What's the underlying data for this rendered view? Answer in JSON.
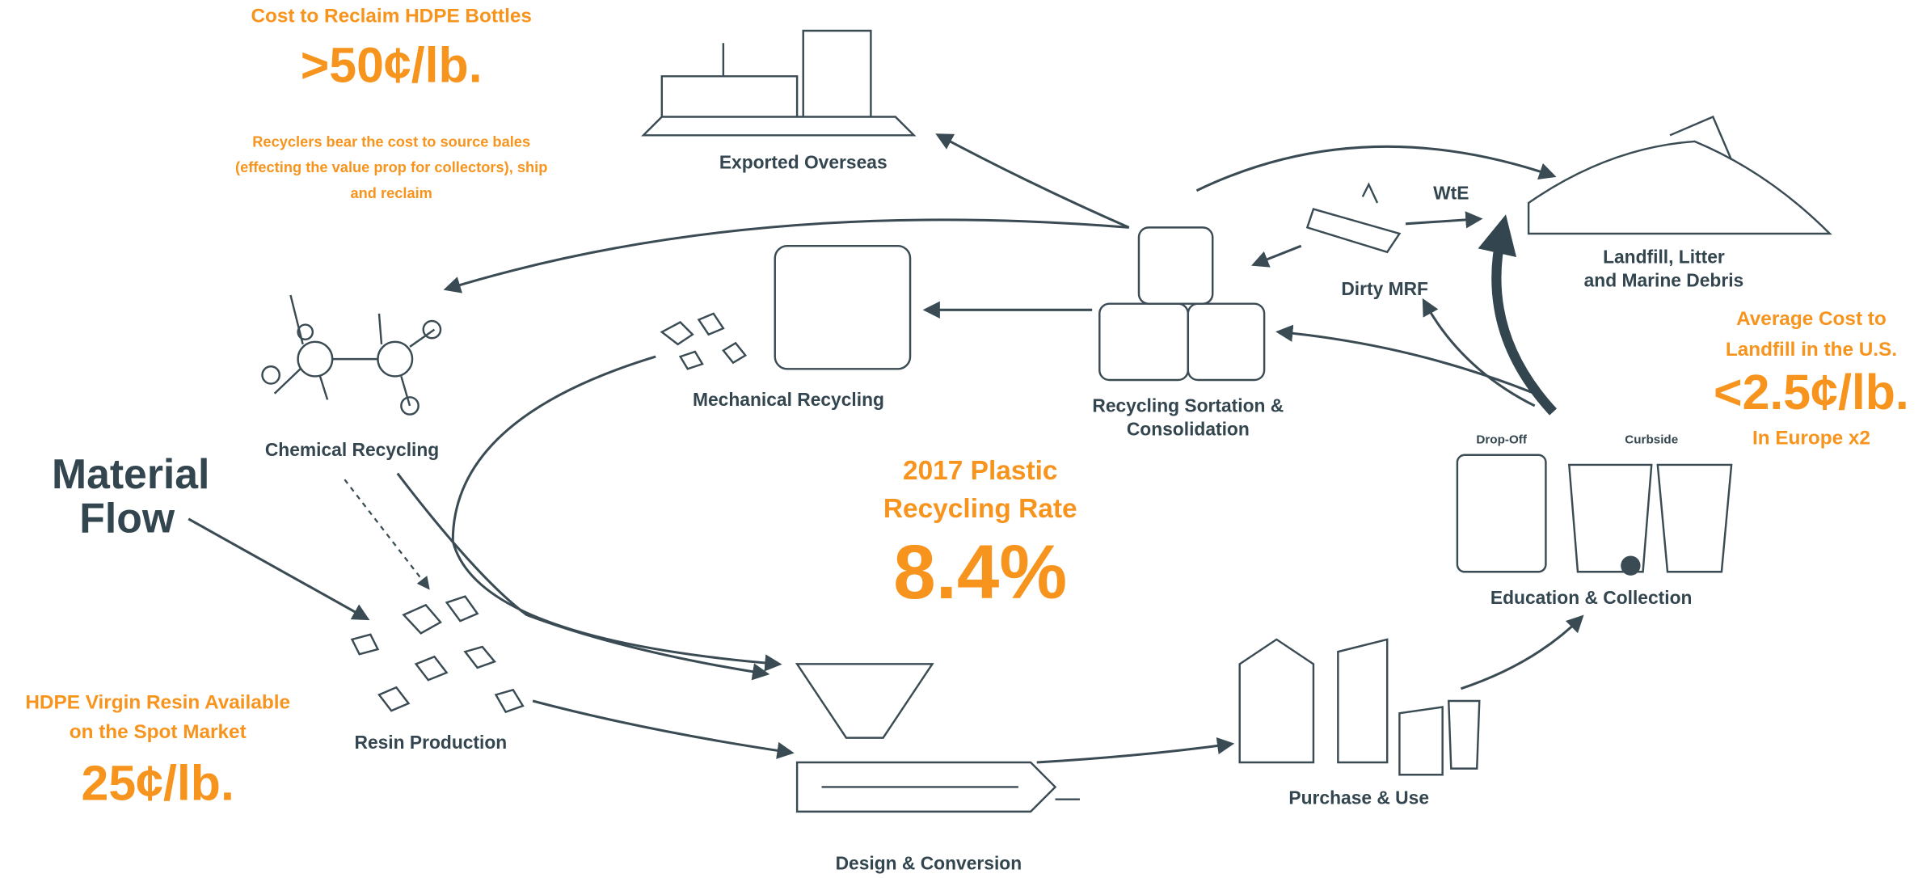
{
  "title": [
    "Material",
    "Flow"
  ],
  "center_stat": {
    "heading": [
      "2017 Plastic",
      "Recycling Rate"
    ],
    "value": "8.4%"
  },
  "callouts": {
    "reclaim": {
      "heading": "Cost to Reclaim HDPE Bottles",
      "value": ">50¢/lb.",
      "note": [
        "Recyclers bear the cost to source bales",
        "(effecting the value prop for collectors), ship",
        "and reclaim"
      ]
    },
    "landfill": {
      "heading": [
        "Average Cost to",
        "Landfill in the U.S."
      ],
      "value": "<2.5¢/lb.",
      "note": "In Europe x2"
    },
    "virgin": {
      "heading": [
        "HDPE Virgin Resin Available",
        "on the Spot Market"
      ],
      "value": "25¢/lb."
    }
  },
  "nodes": {
    "exported": "Exported Overseas",
    "landfill": [
      "Landfill, Litter",
      "and Marine Debris"
    ],
    "wte": "WtE",
    "dirty_mrf": "Dirty MRF",
    "sortation": [
      "Recycling Sortation &",
      "Consolidation"
    ],
    "mechanical": "Mechanical Recycling",
    "chemical": "Chemical Recycling",
    "collection": "Education & Collection",
    "drop_off": "Drop-Off",
    "curbside": "Curbside",
    "resin": "Resin Production",
    "purchase": "Purchase & Use",
    "design": "Design & Conversion"
  }
}
